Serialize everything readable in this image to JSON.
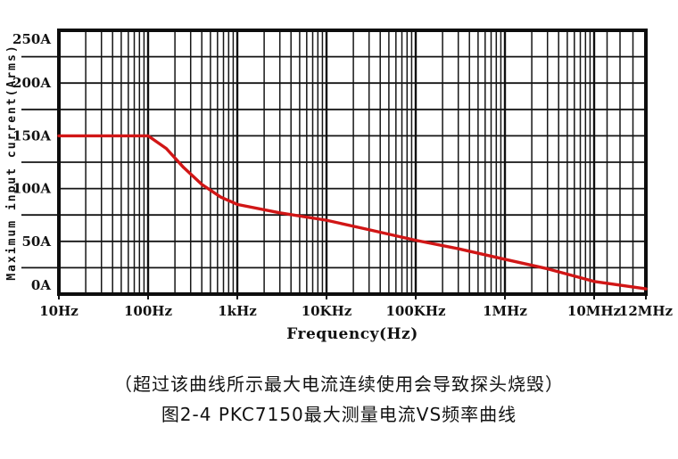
{
  "figure": {
    "caption_warning": "（超过该曲线所示最大电流连续使用会导致探头烧毁）",
    "caption_title": "图2-4 PKC7150最大测量电流VS频率曲线"
  },
  "chart_data": {
    "type": "line",
    "title": "",
    "xlabel": "Frequency(Hz)",
    "ylabel": "Maximum input current(Arms)",
    "x_scale": "log",
    "xlim": [
      10,
      12000000
    ],
    "ylim": [
      0,
      250
    ],
    "y_grid_step": 25,
    "grid": true,
    "legend": "none",
    "x_ticks": [
      {
        "value": 10,
        "label": "10Hz"
      },
      {
        "value": 100,
        "label": "100Hz"
      },
      {
        "value": 1000,
        "label": "1kHz"
      },
      {
        "value": 10000,
        "label": "10KHz"
      },
      {
        "value": 100000,
        "label": "100KHz"
      },
      {
        "value": 1000000,
        "label": "1MHz"
      },
      {
        "value": 10000000,
        "label": "10MHz"
      },
      {
        "value": 12000000,
        "label": "12MHz"
      }
    ],
    "y_ticks": [
      {
        "value": 0,
        "label": "0A"
      },
      {
        "value": 50,
        "label": "50A"
      },
      {
        "value": 100,
        "label": "100A"
      },
      {
        "value": 150,
        "label": "150A"
      },
      {
        "value": 200,
        "label": "200A"
      },
      {
        "value": 250,
        "label": "250A"
      }
    ],
    "series": [
      {
        "name": "PKC7150 maximum measurable current vs frequency",
        "color": "#d11616",
        "points": [
          {
            "x": 10,
            "y": 150
          },
          {
            "x": 100,
            "y": 150
          },
          {
            "x": 160,
            "y": 138
          },
          {
            "x": 250,
            "y": 120
          },
          {
            "x": 400,
            "y": 104
          },
          {
            "x": 650,
            "y": 92
          },
          {
            "x": 1000,
            "y": 85
          },
          {
            "x": 3000,
            "y": 77
          },
          {
            "x": 10000,
            "y": 70
          },
          {
            "x": 30000,
            "y": 61
          },
          {
            "x": 100000,
            "y": 51
          },
          {
            "x": 300000,
            "y": 43
          },
          {
            "x": 1000000,
            "y": 33
          },
          {
            "x": 3000000,
            "y": 24
          },
          {
            "x": 10000000,
            "y": 12
          },
          {
            "x": 12000000,
            "y": 5
          }
        ]
      }
    ]
  }
}
